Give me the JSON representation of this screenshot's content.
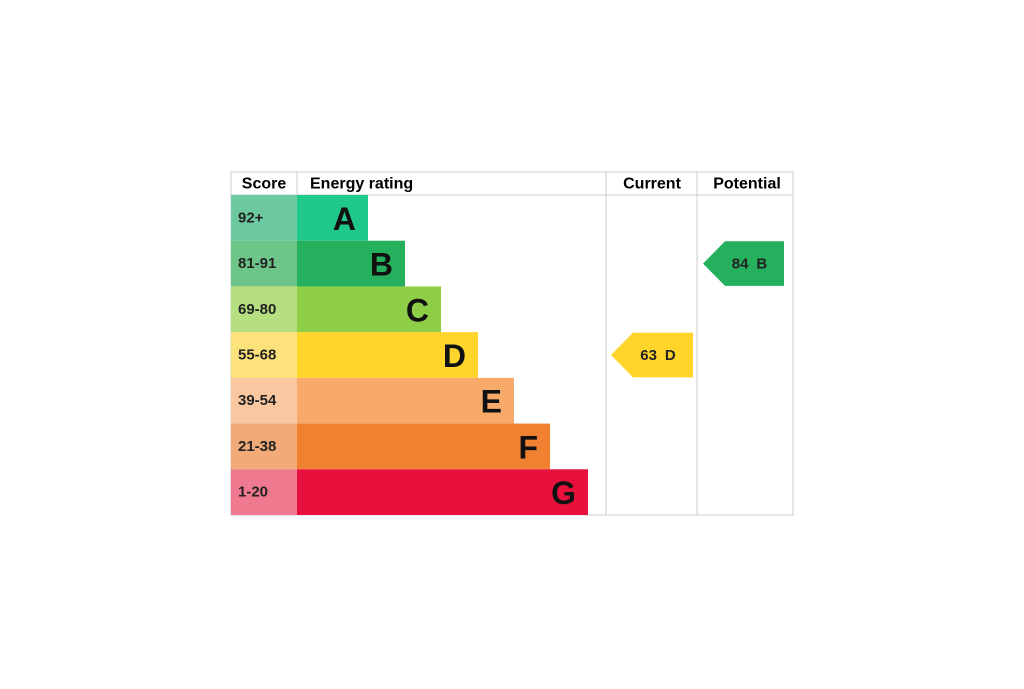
{
  "header": {
    "score": "Score",
    "rating": "Energy rating",
    "current": "Current",
    "potential": "Potential"
  },
  "bands": [
    {
      "score": "92+",
      "letter": "A",
      "color": "#1fc98a",
      "score_color": "#6cc9a0"
    },
    {
      "score": "81-91",
      "letter": "B",
      "color": "#24b05c",
      "score_color": "#6dc58a"
    },
    {
      "score": "69-80",
      "letter": "C",
      "color": "#8dce46",
      "score_color": "#b6e07f"
    },
    {
      "score": "55-68",
      "letter": "D",
      "color": "#ffd52b",
      "score_color": "#fde27c"
    },
    {
      "score": "39-54",
      "letter": "E",
      "color": "#f8aa6a",
      "score_color": "#f9c8a0"
    },
    {
      "score": "21-38",
      "letter": "F",
      "color": "#ef8131",
      "score_color": "#f2aa78"
    },
    {
      "score": "1-20",
      "letter": "G",
      "color": "#e8113e",
      "score_color": "#ef7a8f"
    }
  ],
  "current": {
    "score": 63,
    "rating": "D"
  },
  "potential": {
    "score": 84,
    "rating": "B"
  }
}
